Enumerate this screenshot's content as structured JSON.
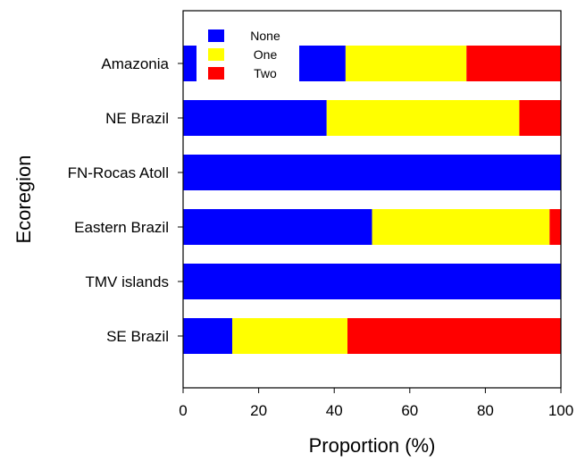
{
  "chart_data": {
    "type": "bar",
    "orientation": "horizontal",
    "stacked": true,
    "xlabel": "Proportion (%)",
    "ylabel": "Ecoregion",
    "xlim": [
      0,
      100
    ],
    "xticks": [
      0,
      20,
      40,
      60,
      80,
      100
    ],
    "categories": [
      "Amazonia",
      "NE Brazil",
      "FN-Rocas Atoll",
      "Eastern Brazil",
      "TMV islands",
      "SE Brazil"
    ],
    "series": [
      {
        "name": "None",
        "color": "#0000ff",
        "values": [
          43,
          38,
          100,
          50,
          100,
          13
        ]
      },
      {
        "name": "One",
        "color": "#ffff00",
        "values": [
          32,
          51,
          0,
          47,
          0,
          30.5
        ]
      },
      {
        "name": "Two",
        "color": "#ff0000",
        "values": [
          25,
          11,
          0,
          3,
          0,
          56.5
        ]
      }
    ],
    "legend_position": "top-left",
    "grid": false
  }
}
